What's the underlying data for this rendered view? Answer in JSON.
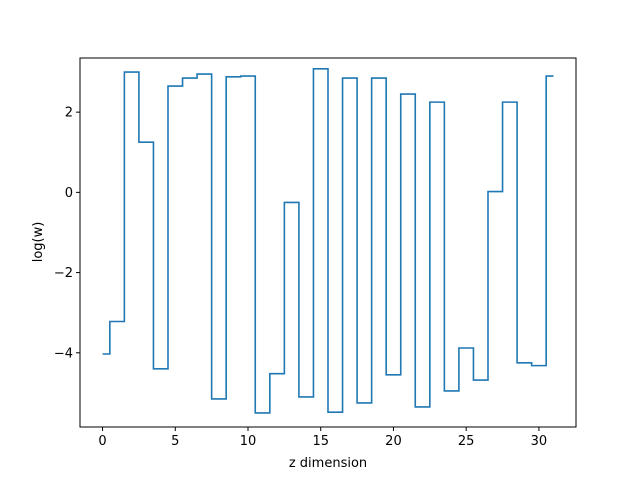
{
  "chart_data": {
    "type": "line",
    "drawstyle": "steps-mid",
    "xlabel": "z dimension",
    "ylabel": "log(w)",
    "xlim": [
      -1.55,
      32.55
    ],
    "ylim": [
      -5.85,
      3.35
    ],
    "xticks": [
      0,
      5,
      10,
      15,
      20,
      25,
      30
    ],
    "yticks": [
      -4,
      -2,
      0,
      2
    ],
    "ytick_labels": [
      "−4",
      "−2",
      "0",
      "2"
    ],
    "grid": false,
    "line_color": "#1f77b4",
    "x": [
      0,
      1,
      2,
      3,
      4,
      5,
      6,
      7,
      8,
      9,
      10,
      11,
      12,
      13,
      14,
      15,
      16,
      17,
      18,
      19,
      20,
      21,
      22,
      23,
      24,
      25,
      26,
      27,
      28,
      29,
      30,
      31
    ],
    "y": [
      -4.03,
      -3.22,
      3.0,
      1.25,
      -4.4,
      2.65,
      2.85,
      2.95,
      -5.15,
      2.88,
      2.9,
      -5.5,
      -4.52,
      -0.25,
      -5.1,
      3.08,
      -5.48,
      2.85,
      -5.25,
      2.85,
      -4.55,
      2.45,
      -5.35,
      2.25,
      -4.95,
      -3.88,
      -4.68,
      0.02,
      2.25,
      -4.25,
      -4.32,
      2.9
    ]
  }
}
